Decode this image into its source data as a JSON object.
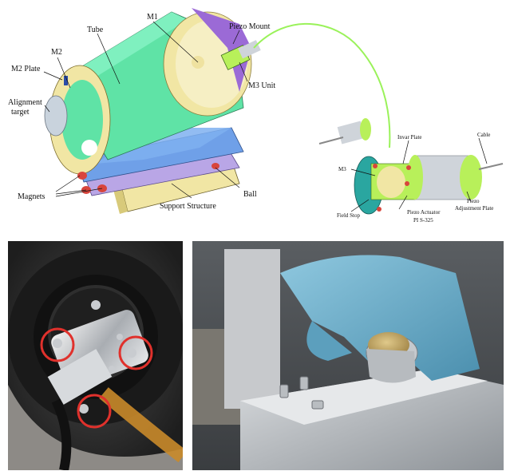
{
  "cad_labels": {
    "m1": "M1",
    "tube": "Tube",
    "piezo_mount": "Piezo Mount",
    "m2": "M2",
    "m2_plate": "M2 Plate",
    "m3_unit": "M3 Unit",
    "alignment_target_line1": "Alignment",
    "alignment_target_line2": "target",
    "magnets": "Magnets",
    "support_structure": "Support Structure",
    "ball": "Ball"
  },
  "inset_labels": {
    "invar_plate": "Invar Plate",
    "cable": "Cable",
    "m3": "M3",
    "field_stop": "Field Stop",
    "piezo_actuator_line1": "Piezo Actuator",
    "piezo_actuator_line2": "PI S-325",
    "piezo_adjustment_line1": "Piezo",
    "piezo_adjustment_line2": "Adjustment Plate"
  },
  "colors": {
    "tube_green": "#5fe3a6",
    "tube_purple": "#9b6ad6",
    "plate_yellow": "#f1e6a4",
    "support_blue": "#6fa0e8",
    "support_purple": "#b9a6e6",
    "magnet_red": "#d8453c",
    "inset_green": "#b8f05a",
    "inset_teal": "#2aa6a0",
    "highlight_circle": "#e0312c",
    "glove_blue": "#6fb3cf"
  }
}
